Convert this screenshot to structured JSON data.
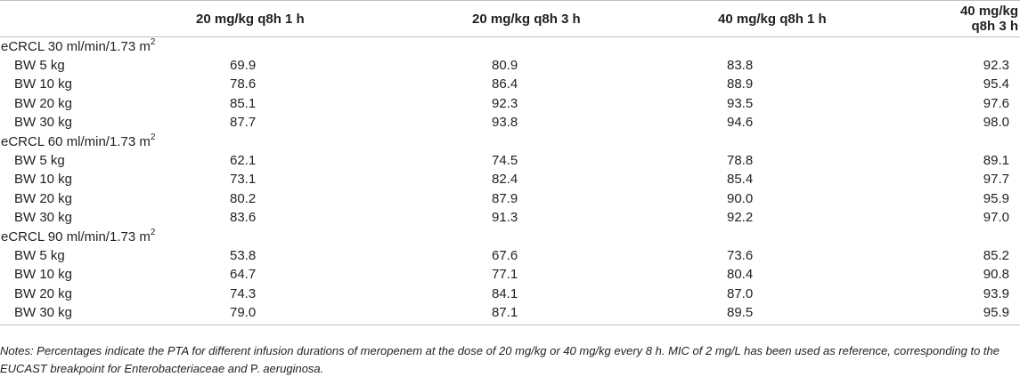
{
  "table": {
    "headers": [
      "",
      "20 mg/kg q8h 1 h",
      "20 mg/kg q8h 3 h",
      "40 mg/kg q8h 1 h",
      "40 mg/kg q8h 3 h"
    ],
    "groups": [
      {
        "label": "eCRCL 30 ml/min/1.73 m",
        "sup": "2",
        "rows": [
          {
            "label": "BW 5 kg",
            "values": [
              "69.9",
              "80.9",
              "83.8",
              "92.3"
            ]
          },
          {
            "label": "BW 10 kg",
            "values": [
              "78.6",
              "86.4",
              "88.9",
              "95.4"
            ]
          },
          {
            "label": "BW 20 kg",
            "values": [
              "85.1",
              "92.3",
              "93.5",
              "97.6"
            ]
          },
          {
            "label": "BW 30 kg",
            "values": [
              "87.7",
              "93.8",
              "94.6",
              "98.0"
            ]
          }
        ]
      },
      {
        "label": "eCRCL 60 ml/min/1.73 m",
        "sup": "2",
        "rows": [
          {
            "label": "BW 5 kg",
            "values": [
              "62.1",
              "74.5",
              "78.8",
              "89.1"
            ]
          },
          {
            "label": "BW 10 kg",
            "values": [
              "73.1",
              "82.4",
              "85.4",
              "97.7"
            ]
          },
          {
            "label": "BW 20 kg",
            "values": [
              "80.2",
              "87.9",
              "90.0",
              "95.9"
            ]
          },
          {
            "label": "BW 30 kg",
            "values": [
              "83.6",
              "91.3",
              "92.2",
              "97.0"
            ]
          }
        ]
      },
      {
        "label": "eCRCL 90 ml/min/1.73 m",
        "sup": "2",
        "rows": [
          {
            "label": "BW 5 kg",
            "values": [
              "53.8",
              "67.6",
              "73.6",
              "85.2"
            ]
          },
          {
            "label": "BW 10 kg",
            "values": [
              "64.7",
              "77.1",
              "80.4",
              "90.8"
            ]
          },
          {
            "label": "BW 20 kg",
            "values": [
              "74.3",
              "84.1",
              "87.0",
              "93.9"
            ]
          },
          {
            "label": "BW 30 kg",
            "values": [
              "79.0",
              "87.1",
              "89.5",
              "95.9"
            ]
          }
        ]
      }
    ]
  },
  "notes": {
    "part1": "Notes: Percentages indicate the PTA for different infusion durations of meropenem at the dose of 20 mg/kg or 40 mg/kg every 8 h. MIC of 2 mg/L has been used as reference, corresponding to the EUCAST breakpoint for Enterobacteriaceae and ",
    "part2": "P.",
    "part3": " aeruginosa."
  }
}
